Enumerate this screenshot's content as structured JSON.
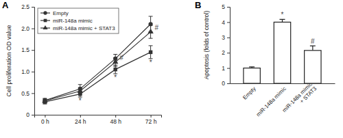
{
  "chart_data": [
    {
      "type": "line",
      "title": "A",
      "y_label": "Cell proliferation OD value",
      "categories": [
        "0 h",
        "24 h",
        "48 h",
        "72 h"
      ],
      "series": [
        {
          "name": "Empty",
          "color": "#333333",
          "marker": "circle",
          "values": [
            0.33,
            0.6,
            1.3,
            2.1
          ],
          "errors": [
            0.05,
            0.1,
            0.1,
            0.18
          ]
        },
        {
          "name": "miR-148a mimic",
          "color": "#333333",
          "marker": "square",
          "values": [
            0.3,
            0.48,
            1.05,
            1.45
          ],
          "errors": [
            0.05,
            0.07,
            0.1,
            0.15
          ]
        },
        {
          "name": "miR-148a mimic + STAT3",
          "color": "#333333",
          "marker": "triangle",
          "values": [
            0.32,
            0.55,
            1.22,
            1.92
          ],
          "errors": [
            0.05,
            0.08,
            0.1,
            0.15
          ]
        }
      ],
      "ylim": [
        0,
        2.5
      ],
      "yticks": [
        0,
        0.5,
        {
          "value": 1,
          "label": "1.0"
        },
        1.5,
        {
          "value": 2,
          "label": "2.0"
        },
        2.5
      ],
      "legend": "upper left",
      "annotations": [
        {
          "text": "*",
          "category": "24 h",
          "series": "miR-148a mimic"
        },
        {
          "text": "*",
          "category": "48 h",
          "series": "miR-148a mimic"
        },
        {
          "text": "#",
          "category": "48 h",
          "series": "miR-148a mimic + STAT3"
        },
        {
          "text": "*",
          "category": "72 h",
          "series": "miR-148a mimic"
        },
        {
          "text": "#",
          "category": "72 h",
          "series": "miR-148a mimic + STAT3"
        }
      ]
    },
    {
      "type": "bar",
      "title": "B",
      "y_label": "Apoptosis (folds of control)",
      "categories": [
        "Empty",
        "miR-148a mimic",
        "miR-148a mimic + STAT3"
      ],
      "values": [
        1,
        4,
        2.15
      ],
      "errors": [
        0.08,
        0.18,
        0.3
      ],
      "color": "#ffffff",
      "ylim": [
        0,
        5
      ],
      "yticks": [
        0,
        1,
        2,
        3,
        4,
        5
      ],
      "annotations": [
        {
          "text": "*",
          "category": "miR-148a mimic"
        },
        {
          "text": "#",
          "category": "miR-148a mimic + STAT3"
        }
      ]
    }
  ]
}
